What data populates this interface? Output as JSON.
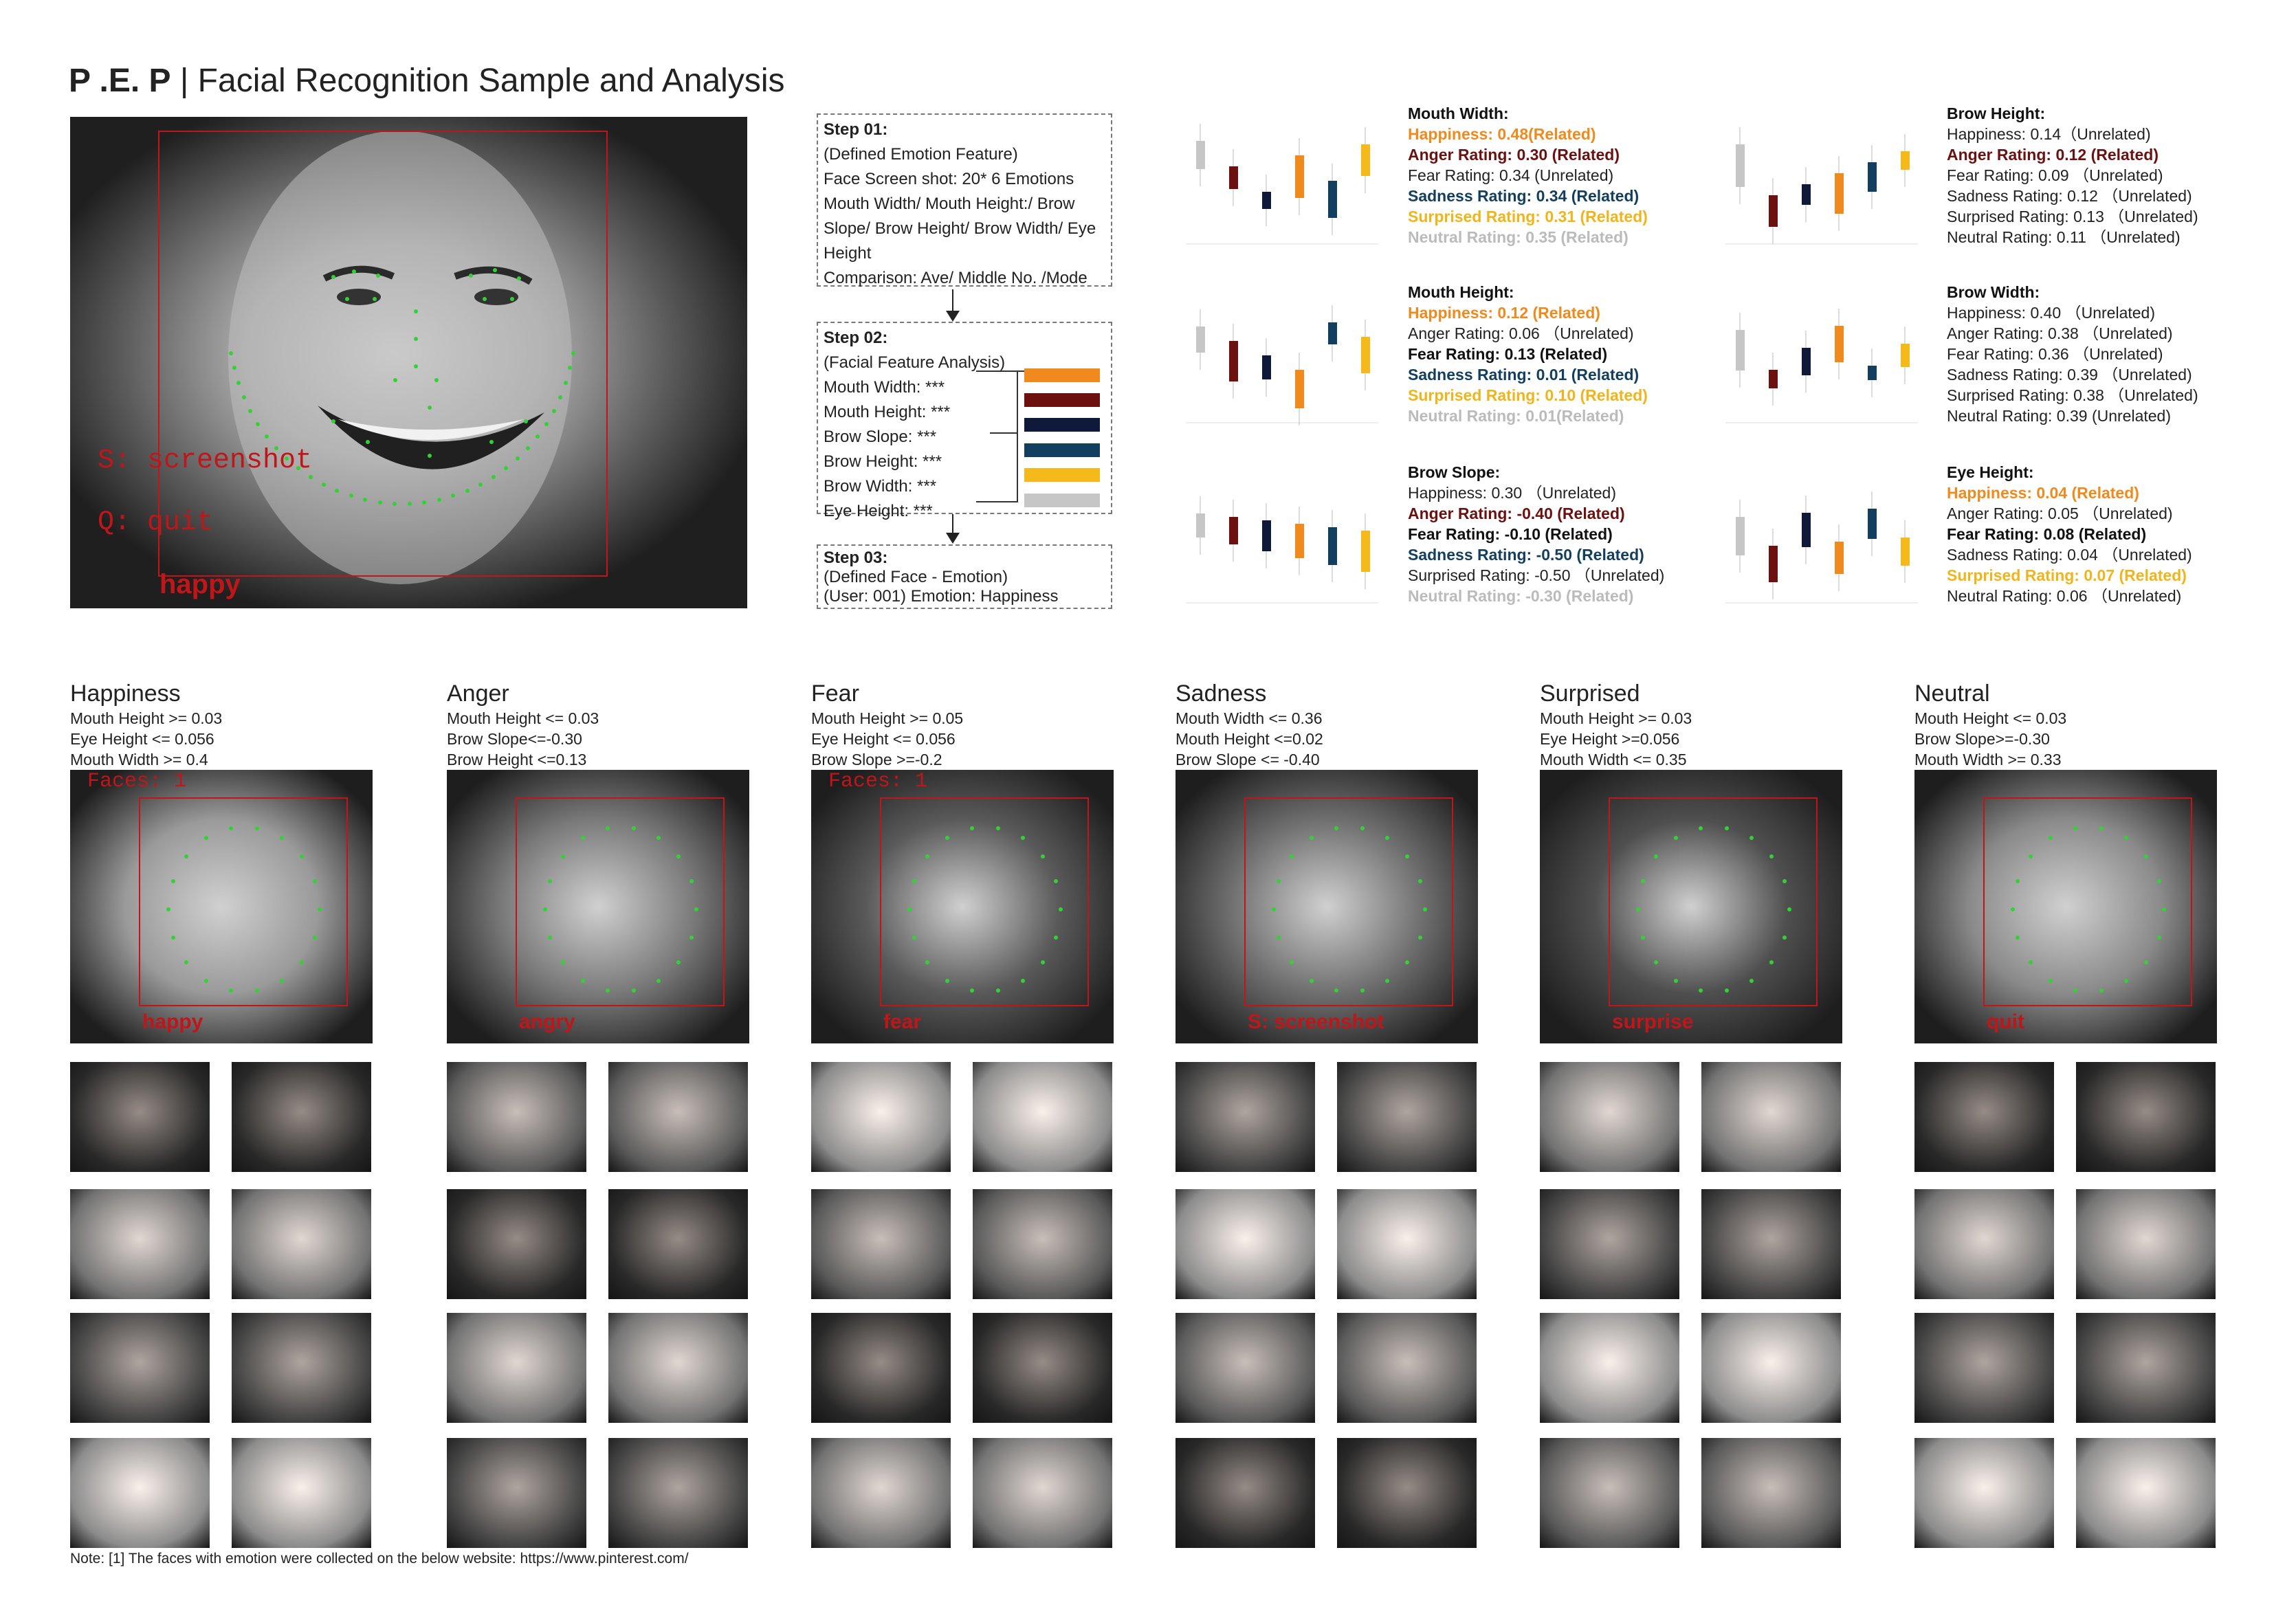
{
  "header": {
    "title_bold": "P .E. P",
    "title_rest": " | Facial Recognition Sample and Analysis"
  },
  "hero": {
    "label_screenshot": "S: screenshot",
    "label_quit": "Q: quit",
    "label_emotion": "happy"
  },
  "steps": {
    "step1": {
      "title": "Step 01:",
      "lines": [
        "(Defined Emotion Feature)",
        "Face Screen shot:  20* 6 Emotions",
        "Mouth Width/ Mouth Height:/ Brow",
        "Slope/ Brow Height/ Brow Width/ Eye",
        "Height",
        "Comparison: Ave/ Middle No. /Mode"
      ]
    },
    "step2": {
      "title": "Step 02:",
      "subtitle": "(Facial Feature Analysis)",
      "features": [
        "Mouth Width: ***",
        "Mouth Height:  ***",
        "Brow Slope:  ***",
        "Brow Height:  ***",
        "Brow Width:  ***",
        "Eye Height:  ***"
      ],
      "swatch_colors": [
        "#f08a1d",
        "#6c1010",
        "#0f1a3a",
        "#123f5f",
        "#f6b91a",
        "#c6c6c6"
      ]
    },
    "step3": {
      "title": "Step 03:",
      "lines": [
        "(Defined Face - Emotion)",
        "(User: 001) Emotion: Happiness"
      ]
    }
  },
  "analysis": [
    {
      "title": "Mouth Width:",
      "lines": [
        {
          "text": "Happiness: 0.48(Related)",
          "style": "c-or"
        },
        {
          "text": "Anger Rating: 0.30 (Related)",
          "style": "c-red"
        },
        {
          "text": "Fear Rating: 0.34  (Unrelated)",
          "style": "c-plain"
        },
        {
          "text": "Sadness Rating: 0.34 (Related)",
          "style": "c-teal"
        },
        {
          "text": "Surprised Rating: 0.31 (Related)",
          "style": "c-yel"
        },
        {
          "text": "Neutral Rating: 0.35 (Related)",
          "style": "c-gry"
        }
      ]
    },
    {
      "title": "Brow Height:",
      "lines": [
        {
          "text": "Happiness: 0.14（Unrelated)",
          "style": "c-plain"
        },
        {
          "text": "Anger Rating: 0.12 (Related)",
          "style": "c-red"
        },
        {
          "text": "Fear Rating: 0.09 （Unrelated)",
          "style": "c-plain"
        },
        {
          "text": "Sadness Rating: 0.12 （Unrelated)",
          "style": "c-plain"
        },
        {
          "text": "Surprised Rating: 0.13 （Unrelated)",
          "style": "c-plain"
        },
        {
          "text": "Neutral Rating: 0.11 （Unrelated)",
          "style": "c-plain"
        }
      ]
    },
    {
      "title": "Mouth Height:",
      "lines": [
        {
          "text": "Happiness: 0.12 (Related)",
          "style": "c-or"
        },
        {
          "text": "Anger Rating: 0.06 （Unrelated)",
          "style": "c-plain"
        },
        {
          "text": "Fear Rating: 0.13 (Related)",
          "style": "c-blk"
        },
        {
          "text": "Sadness Rating: 0.01 (Related)",
          "style": "c-teal"
        },
        {
          "text": "Surprised Rating: 0.10 (Related)",
          "style": "c-yel"
        },
        {
          "text": "Neutral Rating: 0.01(Related)",
          "style": "c-gry"
        }
      ]
    },
    {
      "title": "Brow Width:",
      "lines": [
        {
          "text": "Happiness: 0.40 （Unrelated)",
          "style": "c-plain"
        },
        {
          "text": "Anger Rating: 0.38 （Unrelated)",
          "style": "c-plain"
        },
        {
          "text": "Fear Rating: 0.36 （Unrelated)",
          "style": "c-plain"
        },
        {
          "text": "Sadness Rating: 0.39 （Unrelated)",
          "style": "c-plain"
        },
        {
          "text": "Surprised Rating: 0.38 （Unrelated)",
          "style": "c-plain"
        },
        {
          "text": "Neutral Rating: 0.39 (Unrelated)",
          "style": "c-plain"
        }
      ]
    },
    {
      "title": "Brow Slope:",
      "lines": [
        {
          "text": "Happiness: 0.30 （Unrelated)",
          "style": "c-plain"
        },
        {
          "text": "Anger Rating: -0.40 (Related)",
          "style": "c-red"
        },
        {
          "text": "Fear Rating: -0.10 (Related)",
          "style": "c-blk"
        },
        {
          "text": "Sadness Rating: -0.50 (Related)",
          "style": "c-teal"
        },
        {
          "text": "Surprised Rating: -0.50 （Unrelated)",
          "style": "c-plain"
        },
        {
          "text": "Neutral Rating: -0.30 (Related)",
          "style": "c-gry"
        }
      ]
    },
    {
      "title": "Eye Height:",
      "lines": [
        {
          "text": "Happiness: 0.04 (Related)",
          "style": "c-or"
        },
        {
          "text": "Anger Rating: 0.05 （Unrelated)",
          "style": "c-plain"
        },
        {
          "text": "Fear Rating: 0.08 (Related)",
          "style": "c-blk"
        },
        {
          "text": "Sadness Rating: 0.04 （Unrelated)",
          "style": "c-plain"
        },
        {
          "text": "Surprised Rating: 0.07 (Related)",
          "style": "c-yel"
        },
        {
          "text": "Neutral Rating: 0.06 （Unrelated)",
          "style": "c-plain"
        }
      ]
    }
  ],
  "emotions": [
    {
      "name": "Happiness",
      "rules": [
        "Mouth Height >= 0.03",
        "Eye Height <= 0.056",
        "Mouth Width >= 0.4"
      ],
      "label": "happy",
      "faces_label": "Faces: 1",
      "shade": "#9a9a9a"
    },
    {
      "name": "Anger",
      "rules": [
        "Mouth Height <= 0.03",
        "Brow Slope<=-0.30",
        "Brow Height <=0.13"
      ],
      "label": "angry",
      "faces_label": "",
      "shade": "#7a7a7a"
    },
    {
      "name": "Fear",
      "rules": [
        "Mouth Height >= 0.05",
        "Eye Height <= 0.056",
        "Brow Slope >=-0.2"
      ],
      "label": "fear",
      "faces_label": "Faces: 1",
      "shade": "#5a5a5a"
    },
    {
      "name": "Sadness",
      "rules": [
        "Mouth Width <= 0.36",
        "Mouth Height <=0.02",
        "Brow Slope <= -0.40"
      ],
      "label": "S: screenshot",
      "faces_label": "",
      "shade": "#6f6f6f"
    },
    {
      "name": "Surprised",
      "rules": [
        "Mouth Height >= 0.03",
        "Eye Height >=0.056",
        "Mouth Width <= 0.35"
      ],
      "label": "surprise",
      "faces_label": "",
      "shade": "#4f4f4f"
    },
    {
      "name": "Neutral",
      "rules": [
        "Mouth Height <= 0.03",
        "Brow Slope>=-0.30",
        "Mouth Width >= 0.33"
      ],
      "label": "quit",
      "faces_label": "",
      "shade": "#8a8a8a"
    }
  ],
  "note": "Note:  [1] The faces with emotion were collected on the below website: https://www.pinterest.com/"
}
